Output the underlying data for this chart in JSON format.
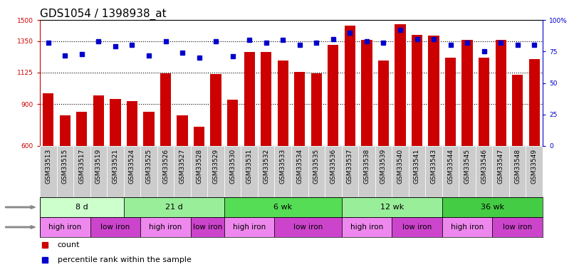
{
  "title": "GDS1054 / 1398938_at",
  "samples": [
    "GSM33513",
    "GSM33515",
    "GSM33517",
    "GSM33519",
    "GSM33521",
    "GSM33524",
    "GSM33525",
    "GSM33526",
    "GSM33527",
    "GSM33528",
    "GSM33529",
    "GSM33530",
    "GSM33531",
    "GSM33532",
    "GSM33533",
    "GSM33534",
    "GSM33535",
    "GSM33536",
    "GSM33537",
    "GSM33538",
    "GSM33539",
    "GSM33540",
    "GSM33541",
    "GSM33543",
    "GSM33544",
    "GSM33545",
    "GSM33546",
    "GSM33547",
    "GSM33548",
    "GSM33549"
  ],
  "counts": [
    975,
    820,
    845,
    960,
    935,
    920,
    845,
    1120,
    820,
    735,
    1115,
    930,
    1270,
    1270,
    1210,
    1130,
    1120,
    1320,
    1460,
    1360,
    1210,
    1470,
    1395,
    1390,
    1230,
    1360,
    1230,
    1360,
    1110,
    1220
  ],
  "percentiles": [
    82,
    72,
    73,
    83,
    79,
    80,
    72,
    83,
    74,
    70,
    83,
    71,
    84,
    82,
    84,
    80,
    82,
    85,
    90,
    83,
    82,
    92,
    85,
    85,
    80,
    82,
    75,
    82,
    80,
    80
  ],
  "ymin": 600,
  "ymax": 1500,
  "yticks": [
    600,
    900,
    1125,
    1350,
    1500
  ],
  "ytick_labels": [
    "600",
    "900",
    "1125",
    "1350",
    "1500"
  ],
  "gridlines": [
    900,
    1125,
    1350
  ],
  "right_yticks": [
    0,
    25,
    50,
    75,
    100
  ],
  "right_ytick_labels": [
    "0",
    "25",
    "50",
    "75",
    "100%"
  ],
  "bar_color": "#CC0000",
  "dot_color": "#0000CC",
  "tick_bg_color": "#cccccc",
  "age_groups": [
    {
      "label": "8 d",
      "start": 0,
      "end": 5,
      "color": "#ccffcc"
    },
    {
      "label": "21 d",
      "start": 5,
      "end": 11,
      "color": "#99ee99"
    },
    {
      "label": "6 wk",
      "start": 11,
      "end": 18,
      "color": "#55dd55"
    },
    {
      "label": "12 wk",
      "start": 18,
      "end": 24,
      "color": "#99ee99"
    },
    {
      "label": "36 wk",
      "start": 24,
      "end": 30,
      "color": "#44cc44"
    }
  ],
  "dose_groups": [
    {
      "label": "high iron",
      "start": 0,
      "end": 3,
      "color": "#ee88ee"
    },
    {
      "label": "low iron",
      "start": 3,
      "end": 6,
      "color": "#cc44cc"
    },
    {
      "label": "high iron",
      "start": 6,
      "end": 9,
      "color": "#ee88ee"
    },
    {
      "label": "low iron",
      "start": 9,
      "end": 11,
      "color": "#cc44cc"
    },
    {
      "label": "high iron",
      "start": 11,
      "end": 14,
      "color": "#ee88ee"
    },
    {
      "label": "low iron",
      "start": 14,
      "end": 18,
      "color": "#cc44cc"
    },
    {
      "label": "high iron",
      "start": 18,
      "end": 21,
      "color": "#ee88ee"
    },
    {
      "label": "low iron",
      "start": 21,
      "end": 24,
      "color": "#cc44cc"
    },
    {
      "label": "high iron",
      "start": 24,
      "end": 27,
      "color": "#ee88ee"
    },
    {
      "label": "low iron",
      "start": 27,
      "end": 30,
      "color": "#cc44cc"
    }
  ],
  "left_axis_color": "#CC0000",
  "right_axis_color": "#0000CC",
  "title_fontsize": 11,
  "tick_fontsize": 6.5,
  "label_fontsize": 8,
  "row_label_fontsize": 9,
  "bar_width": 0.65
}
